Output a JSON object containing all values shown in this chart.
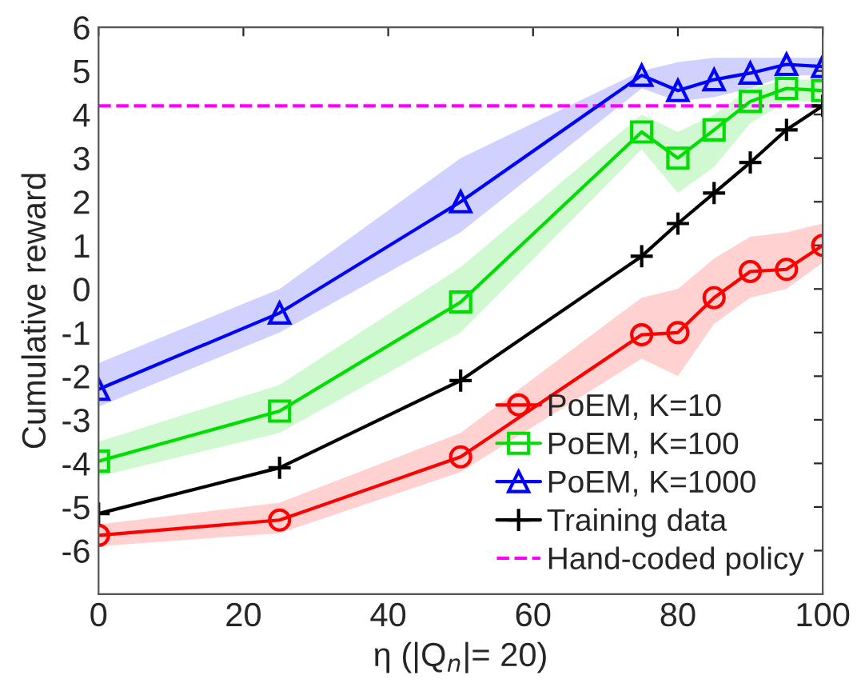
{
  "chart_data": {
    "type": "line",
    "xlabel": "η (|Q$_{n}$|= 20)",
    "ylabel": "Cumulative reward",
    "xlim": [
      0,
      100
    ],
    "xticks": [
      0,
      20,
      40,
      60,
      80,
      100
    ],
    "ylim": [
      -7,
      6
    ],
    "yticks": [
      -6,
      -5,
      -4,
      -3,
      -2,
      -1,
      0,
      1,
      2,
      3,
      4,
      5,
      6
    ],
    "grid": false,
    "legend": "bottom right",
    "line_style": "solid",
    "series": [
      {
        "name": "PoEM, K=10",
        "color": "#ff0000",
        "marker": "circle",
        "x": [
          0,
          25,
          50,
          75,
          80,
          85,
          90,
          95,
          100
        ],
        "values": [
          -5.65,
          -5.3,
          -3.85,
          -1.05,
          -1.0,
          -0.2,
          0.4,
          0.45,
          1.0
        ],
        "lower": [
          -5.9,
          -5.6,
          -4.2,
          -1.6,
          -2.0,
          -0.8,
          -0.2,
          0.0,
          0.6
        ],
        "upper": [
          -5.4,
          -4.9,
          -3.3,
          -0.2,
          0.0,
          0.7,
          1.2,
          1.3,
          1.5
        ]
      },
      {
        "name": "PoEM, K=100",
        "color": "#00dd00",
        "marker": "square",
        "x": [
          0,
          25,
          50,
          75,
          80,
          85,
          90,
          95,
          100
        ],
        "values": [
          -3.95,
          -2.8,
          -0.3,
          3.6,
          3.0,
          3.65,
          4.3,
          4.6,
          4.55
        ],
        "lower": [
          -4.3,
          -3.3,
          -1.0,
          3.2,
          2.2,
          2.8,
          3.8,
          4.3,
          4.3
        ],
        "upper": [
          -3.5,
          -2.2,
          0.5,
          4.0,
          3.6,
          4.0,
          4.6,
          4.8,
          4.8
        ]
      },
      {
        "name": "PoEM, K=1000",
        "color": "#0000ff",
        "marker": "triangle",
        "x": [
          0,
          25,
          50,
          75,
          80,
          85,
          90,
          95,
          100
        ],
        "values": [
          -2.3,
          -0.55,
          2.0,
          4.9,
          4.55,
          4.8,
          4.95,
          5.15,
          5.1
        ],
        "lower": [
          -2.7,
          -1.0,
          1.3,
          4.6,
          4.3,
          4.4,
          4.6,
          4.9,
          4.9
        ],
        "upper": [
          -1.7,
          0.0,
          3.0,
          5.0,
          5.2,
          5.3,
          5.3,
          5.3,
          5.3
        ]
      },
      {
        "name": "Training data",
        "color": "#000000",
        "marker": "cross",
        "x": [
          0,
          25,
          50,
          75,
          80,
          85,
          90,
          95,
          100
        ],
        "values": [
          -5.15,
          -4.1,
          -2.1,
          0.75,
          1.5,
          2.2,
          2.9,
          3.65,
          4.2
        ]
      }
    ],
    "ref_lines": [
      {
        "axis": "y",
        "value": 4.2,
        "label": "Hand-coded policy",
        "color": "#ff00ff",
        "line_style": "dashed"
      }
    ]
  }
}
